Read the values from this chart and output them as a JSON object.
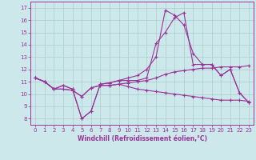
{
  "xlabel": "Windchill (Refroidissement éolien,°C)",
  "background_color": "#cce8ea",
  "grid_color": "#aacccc",
  "line_color": "#993399",
  "xlim": [
    -0.5,
    23.5
  ],
  "ylim": [
    7.5,
    17.5
  ],
  "yticks": [
    8,
    9,
    10,
    11,
    12,
    13,
    14,
    15,
    16,
    17
  ],
  "xticks": [
    0,
    1,
    2,
    3,
    4,
    5,
    6,
    7,
    8,
    9,
    10,
    11,
    12,
    13,
    14,
    15,
    16,
    17,
    18,
    19,
    20,
    21,
    22,
    23
  ],
  "series": [
    [
      11.3,
      11.0,
      10.4,
      10.7,
      10.4,
      8.0,
      8.6,
      10.8,
      10.9,
      11.1,
      11.3,
      11.5,
      12.0,
      13.0,
      16.8,
      16.4,
      15.6,
      13.3,
      12.4,
      12.4,
      11.5,
      12.0,
      10.1,
      9.3
    ],
    [
      11.3,
      11.0,
      10.4,
      10.7,
      10.4,
      8.0,
      8.6,
      10.8,
      10.9,
      11.1,
      11.1,
      11.1,
      11.3,
      14.1,
      15.0,
      16.2,
      16.6,
      12.4,
      12.4,
      12.4,
      11.5,
      12.0,
      10.1,
      9.3
    ],
    [
      11.3,
      11.0,
      10.4,
      10.4,
      10.3,
      9.8,
      10.5,
      10.7,
      10.7,
      10.8,
      10.9,
      11.0,
      11.1,
      11.3,
      11.6,
      11.8,
      11.9,
      12.0,
      12.1,
      12.1,
      12.2,
      12.2,
      12.2,
      12.3
    ],
    [
      11.3,
      11.0,
      10.4,
      10.4,
      10.3,
      9.8,
      10.5,
      10.7,
      10.7,
      10.8,
      10.6,
      10.4,
      10.3,
      10.2,
      10.1,
      10.0,
      9.9,
      9.8,
      9.7,
      9.6,
      9.5,
      9.5,
      9.5,
      9.4
    ]
  ]
}
